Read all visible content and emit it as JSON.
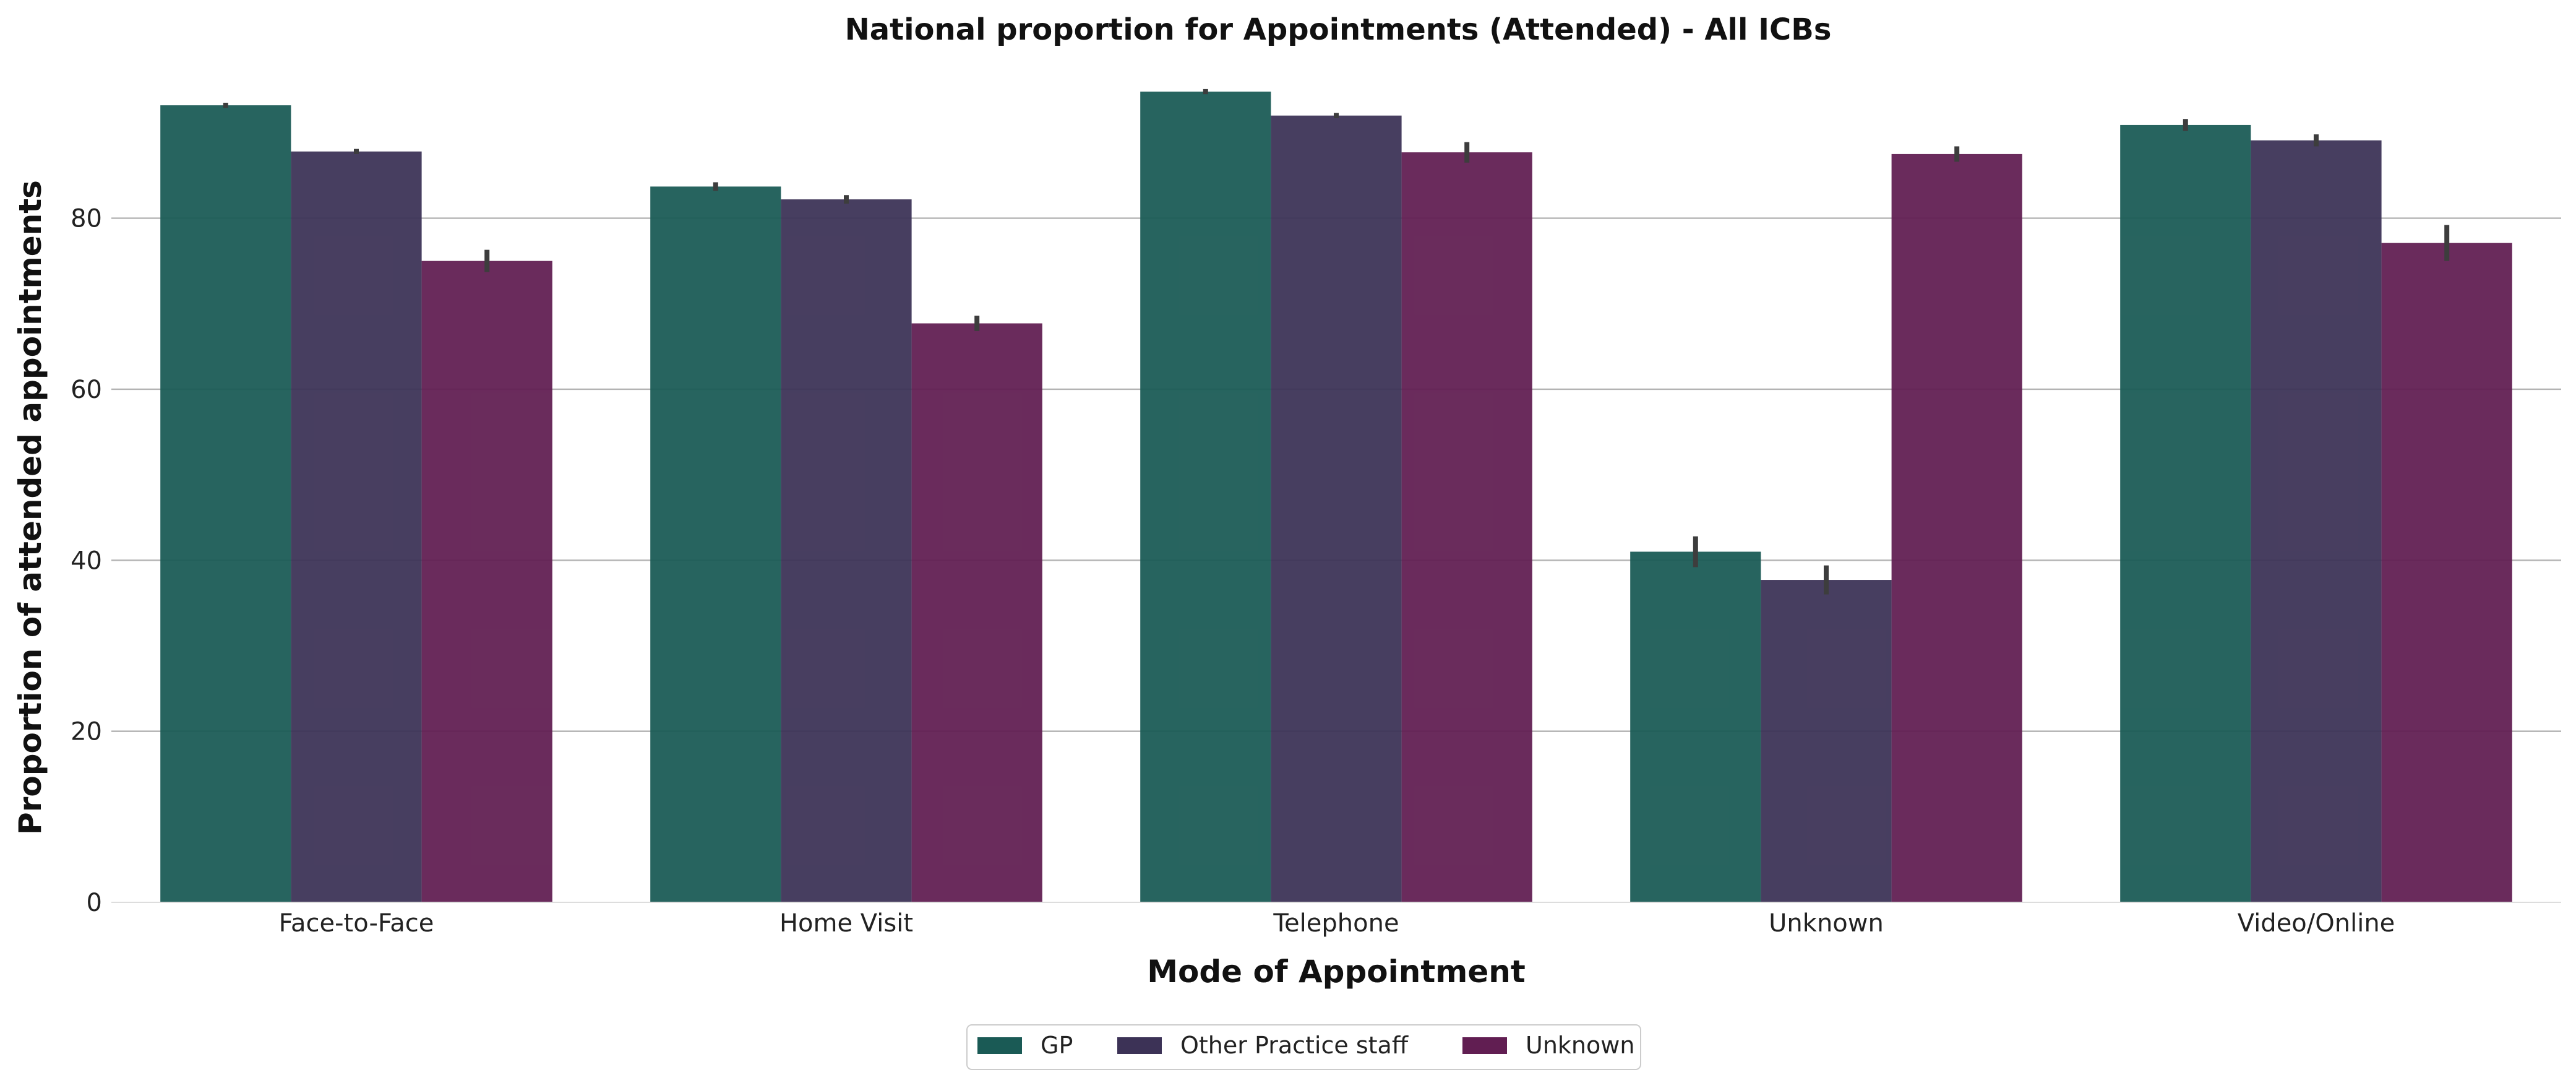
{
  "chart_data": {
    "type": "bar",
    "title": "National proportion for Appointments (Attended) - All ICBs",
    "xlabel": "Mode of Appointment",
    "ylabel": "Proportion of attended appointments",
    "categories": [
      "Face-to-Face",
      "Home Visit",
      "Telephone",
      "Unknown",
      "Video/Online"
    ],
    "yticks": [
      0,
      20,
      40,
      60,
      80
    ],
    "ylim": [
      0,
      99
    ],
    "grid": true,
    "legend_position": "bottom-center",
    "series": [
      {
        "name": "GP",
        "color": "#1a5a55",
        "values": [
          93.2,
          83.7,
          94.8,
          41.0,
          90.9
        ],
        "errors": [
          0.3,
          0.5,
          0.3,
          1.8,
          0.7
        ]
      },
      {
        "name": "Other Practice staff",
        "color": "#3c3256",
        "values": [
          87.8,
          82.2,
          92.0,
          37.7,
          89.1
        ],
        "errors": [
          0.3,
          0.5,
          0.3,
          1.7,
          0.7
        ]
      },
      {
        "name": "Unknown",
        "color": "#611e52",
        "values": [
          75.0,
          67.7,
          87.7,
          87.5,
          77.1
        ],
        "errors": [
          1.3,
          0.9,
          1.2,
          0.9,
          2.1
        ]
      }
    ]
  }
}
